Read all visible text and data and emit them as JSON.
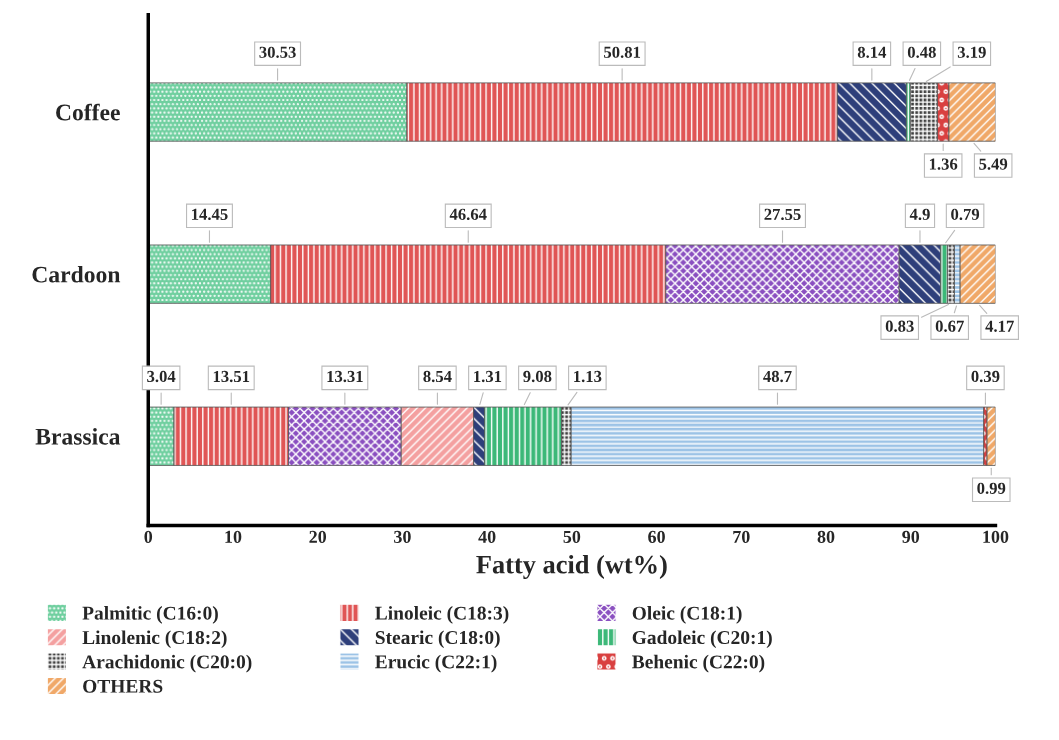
{
  "chart_data": {
    "type": "bar",
    "orientation": "horizontal",
    "stacked": true,
    "xlabel": "Fatty acid (wt%)",
    "categories": [
      "Coffee",
      "Cardoon",
      "Brassica"
    ],
    "series": [
      {
        "name": "Palmitic (C16:0)",
        "color": "#6fcf9f",
        "values": [
          30.53,
          14.45,
          3.04
        ]
      },
      {
        "name": "Linoleic (C18:3)",
        "color": "#e05555",
        "values": [
          50.81,
          46.64,
          13.51
        ]
      },
      {
        "name": "Oleic (C18:1)",
        "color": "#8a4fc0",
        "values": [
          null,
          27.55,
          13.31
        ]
      },
      {
        "name": "Linolenic (C18:2)",
        "color": "#f4a0a0",
        "values": [
          null,
          null,
          8.54
        ]
      },
      {
        "name": "Stearic (C18:0)",
        "color": "#2e3f7a",
        "values": [
          8.14,
          4.9,
          1.31
        ]
      },
      {
        "name": "Gadoleic (C20:1)",
        "color": "#3cb878",
        "values": [
          0.48,
          0.79,
          9.08
        ]
      },
      {
        "name": "Arachidonic (C20:0)",
        "color": "#404040",
        "values": [
          3.19,
          0.83,
          1.13
        ]
      },
      {
        "name": "Erucic (C22:1)",
        "color": "#9cc3e6",
        "values": [
          null,
          0.67,
          48.7
        ]
      },
      {
        "name": "Behenic (C22:0)",
        "color": "#d94040",
        "values": [
          1.36,
          null,
          0.39
        ]
      },
      {
        "name": "OTHERS",
        "color": "#f0a868",
        "values": [
          5.49,
          4.17,
          0.99
        ]
      }
    ],
    "xlim": [
      0,
      100
    ],
    "xticks": [
      0,
      10,
      20,
      30,
      40,
      50,
      60,
      70,
      80,
      90,
      100
    ],
    "data_labels": true,
    "legend": "bottom",
    "grid": false
  }
}
